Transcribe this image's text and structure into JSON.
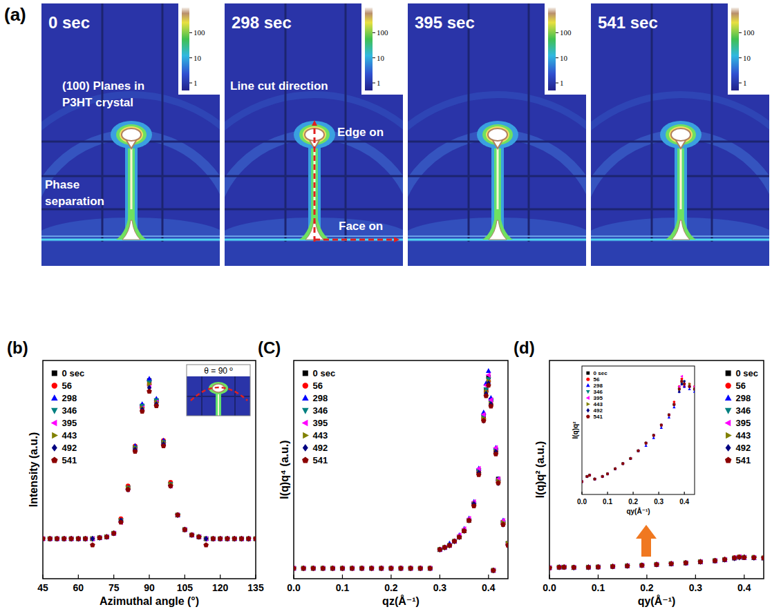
{
  "chart_data": [
    {
      "type": "scatter",
      "panel_label": "(b)",
      "xlabel": "Azimuthal angle (°)",
      "ylabel": "Intensity (a.u.)",
      "annotations": [
        "θ = 90 º"
      ],
      "xlim": [
        45,
        135
      ],
      "xticks": [
        45,
        60,
        75,
        90,
        105,
        120,
        135
      ],
      "ylim": [
        -0.1,
        1.1
      ],
      "tick_labels": "x",
      "legend": "top-left",
      "x": [
        45,
        48,
        51,
        54,
        57,
        60,
        63,
        66,
        69,
        72,
        75,
        78,
        81,
        84,
        87,
        90,
        93,
        96,
        99,
        102,
        105,
        108,
        111,
        114,
        117,
        120,
        123,
        126,
        129,
        132,
        135
      ],
      "series": [
        {
          "name": "0 sec",
          "color": "#000000",
          "marker": "square",
          "values": [
            0.12,
            0.12,
            0.12,
            0.12,
            0.12,
            0.12,
            0.12,
            0.12,
            0.125,
            0.13,
            0.15,
            0.22,
            0.4,
            0.62,
            0.85,
            0.99,
            0.88,
            0.65,
            0.42,
            0.25,
            0.17,
            0.14,
            0.13,
            0.12,
            0.12,
            0.12,
            0.12,
            0.12,
            0.12,
            0.12,
            0.12
          ]
        },
        {
          "name": "56",
          "color": "#ff0000",
          "marker": "circle",
          "values": [
            0.12,
            0.12,
            0.12,
            0.12,
            0.12,
            0.12,
            0.12,
            0.12,
            0.125,
            0.13,
            0.15,
            0.23,
            0.41,
            0.63,
            0.84,
            0.97,
            0.87,
            0.66,
            0.43,
            0.25,
            0.17,
            0.14,
            0.13,
            0.12,
            0.12,
            0.12,
            0.12,
            0.12,
            0.12,
            0.12,
            0.12
          ]
        },
        {
          "name": "298",
          "color": "#0000ff",
          "marker": "triangle",
          "values": [
            0.12,
            0.12,
            0.12,
            0.12,
            0.12,
            0.12,
            0.12,
            0.12,
            0.125,
            0.13,
            0.15,
            0.22,
            0.4,
            0.63,
            0.86,
            1.0,
            0.89,
            0.66,
            0.42,
            0.25,
            0.17,
            0.14,
            0.13,
            0.12,
            0.12,
            0.12,
            0.12,
            0.12,
            0.12,
            0.12,
            0.12
          ]
        },
        {
          "name": "346",
          "color": "#008080",
          "marker": "triangle-down",
          "values": [
            0.12,
            0.12,
            0.12,
            0.12,
            0.12,
            0.12,
            0.12,
            0.12,
            0.125,
            0.13,
            0.15,
            0.22,
            0.4,
            0.62,
            0.85,
            0.98,
            0.88,
            0.65,
            0.42,
            0.25,
            0.17,
            0.14,
            0.13,
            0.12,
            0.12,
            0.12,
            0.12,
            0.12,
            0.12,
            0.12,
            0.12
          ]
        },
        {
          "name": "395",
          "color": "#ff00ff",
          "marker": "triangle-left",
          "values": [
            0.12,
            0.12,
            0.12,
            0.12,
            0.12,
            0.12,
            0.12,
            0.12,
            0.125,
            0.13,
            0.15,
            0.21,
            0.39,
            0.61,
            0.84,
            0.96,
            0.87,
            0.64,
            0.41,
            0.25,
            0.17,
            0.14,
            0.13,
            0.12,
            0.12,
            0.12,
            0.12,
            0.12,
            0.12,
            0.12,
            0.12
          ]
        },
        {
          "name": "443",
          "color": "#808000",
          "marker": "triangle-right",
          "values": [
            0.12,
            0.12,
            0.12,
            0.12,
            0.12,
            0.12,
            0.12,
            0.12,
            0.125,
            0.13,
            0.15,
            0.22,
            0.4,
            0.62,
            0.84,
            0.97,
            0.87,
            0.65,
            0.42,
            0.25,
            0.17,
            0.14,
            0.13,
            0.12,
            0.12,
            0.12,
            0.12,
            0.12,
            0.12,
            0.12,
            0.12
          ]
        },
        {
          "name": "492",
          "color": "#000080",
          "marker": "diamond",
          "values": [
            0.12,
            0.12,
            0.12,
            0.12,
            0.12,
            0.12,
            0.12,
            0.12,
            0.125,
            0.13,
            0.15,
            0.22,
            0.39,
            0.61,
            0.83,
            0.95,
            0.86,
            0.64,
            0.41,
            0.25,
            0.17,
            0.14,
            0.13,
            0.12,
            0.12,
            0.12,
            0.12,
            0.12,
            0.12,
            0.12,
            0.12
          ]
        },
        {
          "name": "541",
          "color": "#8b0000",
          "marker": "pentagon",
          "values": [
            0.12,
            0.12,
            0.12,
            0.12,
            0.12,
            0.12,
            0.12,
            0.085,
            0.125,
            0.13,
            0.15,
            0.21,
            0.39,
            0.6,
            0.82,
            0.93,
            0.85,
            0.63,
            0.41,
            0.25,
            0.17,
            0.14,
            0.13,
            0.085,
            0.12,
            0.12,
            0.12,
            0.12,
            0.12,
            0.12,
            0.12
          ]
        }
      ]
    },
    {
      "type": "scatter",
      "panel_label": "(C)",
      "xlabel": "qz(Å⁻¹)",
      "ylabel": "I(q)q⁴ (a.u.)",
      "xlim": [
        0,
        0.44
      ],
      "xticks": [
        {
          "value": 0,
          "label": "0.0"
        },
        0.1,
        0.2,
        0.3,
        0.4
      ],
      "ylim": [
        0,
        1.05
      ],
      "tick_labels": "x",
      "legend": "top-left",
      "x": [
        0,
        0.02,
        0.04,
        0.06,
        0.08,
        0.1,
        0.12,
        0.14,
        0.16,
        0.18,
        0.2,
        0.22,
        0.24,
        0.26,
        0.28,
        0.3,
        0.31,
        0.32,
        0.33,
        0.34,
        0.35,
        0.36,
        0.37,
        0.38,
        0.39,
        0.395,
        0.4,
        0.405,
        0.41,
        0.415,
        0.42,
        0.43,
        0.44
      ],
      "series": [
        {
          "name": "0 sec",
          "color": "#000000",
          "marker": "square",
          "values": [
            0.05,
            0.05,
            0.05,
            0.05,
            0.05,
            0.05,
            0.05,
            0.05,
            0.05,
            0.05,
            0.05,
            0.05,
            0.05,
            0.05,
            0.05,
            0.14,
            0.15,
            0.16,
            0.18,
            0.2,
            0.23,
            0.28,
            0.36,
            0.52,
            0.78,
            0.91,
            0.97,
            0.86,
            0.04,
            0.62,
            0.48,
            0.27,
            0.17
          ]
        },
        {
          "name": "56",
          "color": "#ff0000",
          "marker": "circle",
          "values": [
            0.05,
            0.05,
            0.05,
            0.05,
            0.05,
            0.05,
            0.05,
            0.05,
            0.05,
            0.05,
            0.05,
            0.05,
            0.05,
            0.05,
            0.05,
            0.14,
            0.15,
            0.16,
            0.18,
            0.2,
            0.23,
            0.28,
            0.36,
            0.51,
            0.77,
            0.9,
            0.95,
            0.84,
            0.04,
            0.61,
            0.47,
            0.27,
            0.17
          ]
        },
        {
          "name": "298",
          "color": "#0000ff",
          "marker": "triangle",
          "values": [
            0.05,
            0.05,
            0.05,
            0.05,
            0.05,
            0.05,
            0.05,
            0.05,
            0.05,
            0.05,
            0.05,
            0.05,
            0.05,
            0.05,
            0.05,
            0.14,
            0.15,
            0.17,
            0.18,
            0.21,
            0.24,
            0.29,
            0.37,
            0.53,
            0.8,
            0.94,
            1.0,
            0.87,
            0.04,
            0.63,
            0.48,
            0.28,
            0.17
          ]
        },
        {
          "name": "346",
          "color": "#008080",
          "marker": "triangle-down",
          "values": [
            0.05,
            0.05,
            0.05,
            0.05,
            0.05,
            0.05,
            0.05,
            0.05,
            0.05,
            0.05,
            0.05,
            0.05,
            0.05,
            0.05,
            0.05,
            0.14,
            0.15,
            0.16,
            0.18,
            0.2,
            0.23,
            0.28,
            0.36,
            0.52,
            0.78,
            0.91,
            0.96,
            0.85,
            0.04,
            0.62,
            0.47,
            0.27,
            0.17
          ]
        },
        {
          "name": "395",
          "color": "#ff00ff",
          "marker": "triangle-left",
          "values": [
            0.05,
            0.05,
            0.05,
            0.05,
            0.05,
            0.05,
            0.05,
            0.05,
            0.05,
            0.05,
            0.05,
            0.05,
            0.05,
            0.05,
            0.05,
            0.14,
            0.15,
            0.16,
            0.18,
            0.21,
            0.24,
            0.29,
            0.37,
            0.53,
            0.79,
            0.93,
            0.98,
            0.86,
            0.04,
            0.63,
            0.48,
            0.28,
            0.17
          ]
        },
        {
          "name": "443",
          "color": "#808000",
          "marker": "triangle-right",
          "values": [
            0.05,
            0.05,
            0.05,
            0.05,
            0.05,
            0.05,
            0.05,
            0.05,
            0.05,
            0.05,
            0.05,
            0.05,
            0.05,
            0.05,
            0.05,
            0.14,
            0.15,
            0.16,
            0.18,
            0.2,
            0.23,
            0.28,
            0.36,
            0.51,
            0.77,
            0.9,
            0.95,
            0.84,
            0.04,
            0.61,
            0.47,
            0.27,
            0.17
          ]
        },
        {
          "name": "492",
          "color": "#000080",
          "marker": "diamond",
          "values": [
            0.05,
            0.05,
            0.05,
            0.05,
            0.05,
            0.05,
            0.05,
            0.05,
            0.05,
            0.05,
            0.05,
            0.05,
            0.05,
            0.05,
            0.05,
            0.14,
            0.15,
            0.16,
            0.18,
            0.2,
            0.23,
            0.28,
            0.36,
            0.51,
            0.76,
            0.89,
            0.94,
            0.84,
            0.04,
            0.61,
            0.46,
            0.26,
            0.16
          ]
        },
        {
          "name": "541",
          "color": "#8b0000",
          "marker": "pentagon",
          "values": [
            0.05,
            0.05,
            0.05,
            0.05,
            0.05,
            0.05,
            0.05,
            0.05,
            0.05,
            0.05,
            0.05,
            0.05,
            0.05,
            0.05,
            0.05,
            0.14,
            0.15,
            0.16,
            0.18,
            0.2,
            0.23,
            0.28,
            0.35,
            0.5,
            0.76,
            0.88,
            0.93,
            0.83,
            0.04,
            0.6,
            0.46,
            0.26,
            0.16
          ]
        }
      ]
    },
    {
      "type": "scatter",
      "panel_label": "(d)",
      "xlabel": "qy(Å⁻¹)",
      "ylabel": "I(q)q² (a.u.)",
      "xlim": [
        0,
        0.44
      ],
      "xticks": [
        {
          "value": 0,
          "label": "0.0"
        },
        0.1,
        0.2,
        0.3,
        0.4
      ],
      "ylim": [
        0,
        0.8
      ],
      "tick_labels": "x",
      "legend": "top-right",
      "inset": {
        "xlim": [
          0,
          0.44
        ],
        "xticks": [
          {
            "value": 0,
            "label": "0.0"
          },
          0.1,
          0.2,
          0.3,
          0.4
        ],
        "ylim": [
          0.035,
          0.085
        ],
        "tick_labels": "x",
        "xlabel": "qy(Å⁻¹)",
        "ylabel": "I(q)q²",
        "legend": "top-left"
      },
      "x": [
        0,
        0.02,
        0.03,
        0.05,
        0.08,
        0.1,
        0.13,
        0.16,
        0.19,
        0.22,
        0.25,
        0.28,
        0.31,
        0.34,
        0.36,
        0.38,
        0.39,
        0.4,
        0.42,
        0.44
      ],
      "series": [
        {
          "name": "0 sec",
          "color": "#000000",
          "marker": "square",
          "values": [
            0.04,
            0.042,
            0.0425,
            0.041,
            0.042,
            0.043,
            0.045,
            0.047,
            0.049,
            0.052,
            0.055,
            0.058,
            0.062,
            0.066,
            0.07,
            0.076,
            0.079,
            0.078,
            0.077,
            0.076
          ]
        },
        {
          "name": "56",
          "color": "#ff0000",
          "marker": "circle",
          "values": [
            0.04,
            0.042,
            0.0424,
            0.041,
            0.042,
            0.043,
            0.045,
            0.047,
            0.049,
            0.052,
            0.055,
            0.058,
            0.062,
            0.066,
            0.071,
            0.077,
            0.08,
            0.077,
            0.078,
            0.077
          ]
        },
        {
          "name": "298",
          "color": "#0000ff",
          "marker": "triangle",
          "values": [
            0.04,
            0.042,
            0.0425,
            0.041,
            0.042,
            0.043,
            0.045,
            0.047,
            0.049,
            0.052,
            0.054,
            0.057,
            0.061,
            0.065,
            0.069,
            0.075,
            0.078,
            0.077,
            0.076,
            0.075
          ]
        },
        {
          "name": "346",
          "color": "#008080",
          "marker": "triangle-down",
          "values": [
            0.04,
            0.042,
            0.0425,
            0.041,
            0.042,
            0.043,
            0.045,
            0.047,
            0.049,
            0.052,
            0.055,
            0.058,
            0.062,
            0.066,
            0.07,
            0.076,
            0.078,
            0.079,
            0.077,
            0.076
          ]
        },
        {
          "name": "395",
          "color": "#ff00ff",
          "marker": "triangle-left",
          "values": [
            0.04,
            0.042,
            0.0425,
            0.041,
            0.042,
            0.043,
            0.045,
            0.047,
            0.049,
            0.052,
            0.055,
            0.058,
            0.062,
            0.066,
            0.07,
            0.077,
            0.081,
            0.078,
            0.077,
            0.077
          ]
        },
        {
          "name": "443",
          "color": "#808000",
          "marker": "triangle-right",
          "values": [
            0.04,
            0.042,
            0.0424,
            0.041,
            0.042,
            0.043,
            0.045,
            0.047,
            0.049,
            0.052,
            0.055,
            0.058,
            0.062,
            0.066,
            0.07,
            0.076,
            0.079,
            0.078,
            0.078,
            0.076
          ]
        },
        {
          "name": "492",
          "color": "#000080",
          "marker": "diamond",
          "values": [
            0.04,
            0.042,
            0.0425,
            0.041,
            0.042,
            0.043,
            0.045,
            0.047,
            0.049,
            0.052,
            0.055,
            0.058,
            0.062,
            0.066,
            0.07,
            0.075,
            0.078,
            0.079,
            0.077,
            0.076
          ]
        },
        {
          "name": "541",
          "color": "#8b0000",
          "marker": "pentagon",
          "values": [
            0.04,
            0.042,
            0.0425,
            0.041,
            0.042,
            0.043,
            0.045,
            0.047,
            0.049,
            0.052,
            0.055,
            0.058,
            0.062,
            0.066,
            0.07,
            0.076,
            0.079,
            0.078,
            0.077,
            0.076
          ]
        }
      ]
    }
  ],
  "images": {
    "panel_label": "(a)",
    "log": true,
    "colorbar_range": [
      0.5,
      1000
    ],
    "colorbar_ticks": [
      1,
      10,
      100
    ],
    "panels": [
      {
        "title": "0 sec",
        "annotations": [
          "(100) Planes in P3HT crystal",
          "Phase separation"
        ]
      },
      {
        "title": "298 sec",
        "annotations": [
          "Line cut direction",
          "Edge on",
          "Face on"
        ]
      },
      {
        "title": "395 sec"
      },
      {
        "title": "541 sec"
      }
    ]
  }
}
